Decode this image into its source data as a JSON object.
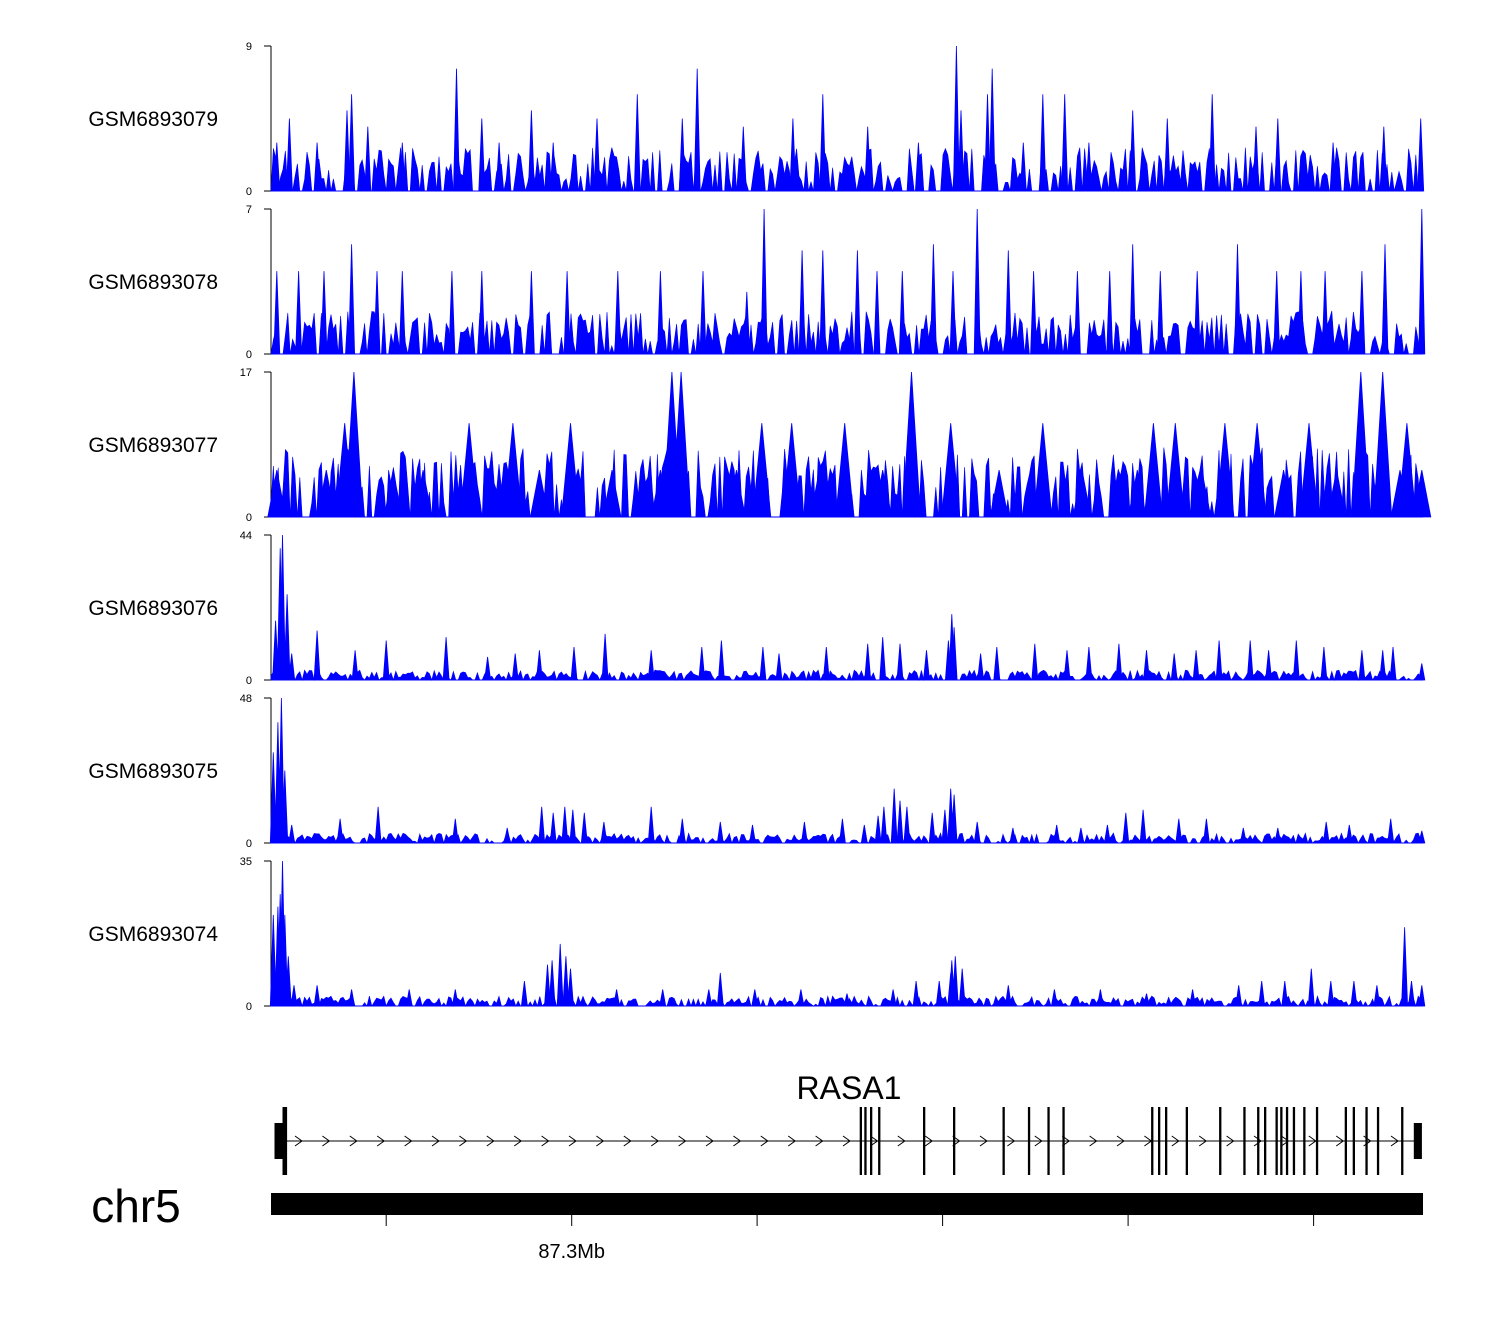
{
  "chart_data": {
    "type": "area",
    "title": "",
    "region": {
      "chromosome": "chr5",
      "gene": "RASA1",
      "tick_label": "87.3Mb"
    },
    "colors": {
      "signal": "#0000ff",
      "gene": "#000000"
    },
    "tracks": [
      {
        "name": "GSM6893079",
        "ymin": 0,
        "ymax": 9,
        "ymin_label": "0",
        "ymax_label": "9",
        "peaks": [
          [
            0.005,
            3
          ],
          [
            0.016,
            4.5
          ],
          [
            0.04,
            3
          ],
          [
            0.066,
            5
          ],
          [
            0.07,
            6
          ],
          [
            0.084,
            4
          ],
          [
            0.114,
            3
          ],
          [
            0.161,
            7.6
          ],
          [
            0.183,
            4.5
          ],
          [
            0.198,
            3
          ],
          [
            0.226,
            5
          ],
          [
            0.245,
            3
          ],
          [
            0.283,
            4.5
          ],
          [
            0.318,
            6
          ],
          [
            0.357,
            4.5
          ],
          [
            0.37,
            7.6
          ],
          [
            0.41,
            4
          ],
          [
            0.453,
            4.5
          ],
          [
            0.479,
            6
          ],
          [
            0.518,
            4
          ],
          [
            0.562,
            3
          ],
          [
            0.595,
            9
          ],
          [
            0.599,
            5
          ],
          [
            0.622,
            6
          ],
          [
            0.626,
            7.6
          ],
          [
            0.653,
            3
          ],
          [
            0.67,
            6
          ],
          [
            0.689,
            6
          ],
          [
            0.71,
            3
          ],
          [
            0.748,
            5
          ],
          [
            0.778,
            4.5
          ],
          [
            0.817,
            6
          ],
          [
            0.855,
            4
          ],
          [
            0.874,
            4.5
          ],
          [
            0.922,
            3
          ],
          [
            0.966,
            4
          ],
          [
            0.998,
            4.5
          ]
        ]
      },
      {
        "name": "GSM6893078",
        "ymin": 0,
        "ymax": 7,
        "ymin_label": "0",
        "ymax_label": "7",
        "peaks": [
          [
            0.005,
            4
          ],
          [
            0.024,
            4
          ],
          [
            0.046,
            4
          ],
          [
            0.07,
            5.3
          ],
          [
            0.092,
            4
          ],
          [
            0.114,
            4
          ],
          [
            0.157,
            4
          ],
          [
            0.183,
            4
          ],
          [
            0.226,
            4
          ],
          [
            0.257,
            4
          ],
          [
            0.301,
            4
          ],
          [
            0.338,
            4
          ],
          [
            0.375,
            4
          ],
          [
            0.413,
            3
          ],
          [
            0.428,
            7
          ],
          [
            0.461,
            5
          ],
          [
            0.479,
            5
          ],
          [
            0.509,
            5
          ],
          [
            0.526,
            4
          ],
          [
            0.548,
            4
          ],
          [
            0.575,
            5.3
          ],
          [
            0.592,
            4
          ],
          [
            0.613,
            7
          ],
          [
            0.64,
            5
          ],
          [
            0.662,
            4
          ],
          [
            0.7,
            4
          ],
          [
            0.728,
            4
          ],
          [
            0.748,
            5.3
          ],
          [
            0.772,
            4
          ],
          [
            0.804,
            4
          ],
          [
            0.839,
            5.3
          ],
          [
            0.873,
            4
          ],
          [
            0.894,
            4
          ],
          [
            0.915,
            4
          ],
          [
            0.947,
            4
          ],
          [
            0.967,
            5.3
          ],
          [
            0.999,
            7
          ]
        ]
      },
      {
        "name": "GSM6893077",
        "ymin": 0,
        "ymax": 17,
        "ymin_label": "0",
        "ymax_label": "17",
        "peaks": [
          [
            0.005,
            5.5
          ],
          [
            0.048,
            5.5
          ],
          [
            0.064,
            11
          ],
          [
            0.072,
            17
          ],
          [
            0.106,
            5.5
          ],
          [
            0.132,
            5.5
          ],
          [
            0.172,
            11
          ],
          [
            0.21,
            11
          ],
          [
            0.233,
            5.5
          ],
          [
            0.26,
            11
          ],
          [
            0.296,
            5.5
          ],
          [
            0.338,
            5.5
          ],
          [
            0.348,
            17
          ],
          [
            0.356,
            17
          ],
          [
            0.404,
            5.5
          ],
          [
            0.426,
            11
          ],
          [
            0.452,
            11
          ],
          [
            0.476,
            5.5
          ],
          [
            0.498,
            11
          ],
          [
            0.531,
            5.5
          ],
          [
            0.556,
            17
          ],
          [
            0.59,
            11
          ],
          [
            0.632,
            5.5
          ],
          [
            0.67,
            11
          ],
          [
            0.704,
            5.5
          ],
          [
            0.752,
            5.5
          ],
          [
            0.766,
            11
          ],
          [
            0.785,
            11
          ],
          [
            0.808,
            5.5
          ],
          [
            0.828,
            11
          ],
          [
            0.856,
            11
          ],
          [
            0.879,
            5.5
          ],
          [
            0.901,
            11
          ],
          [
            0.925,
            5.5
          ],
          [
            0.946,
            17
          ],
          [
            0.965,
            17
          ],
          [
            0.98,
            5.5
          ],
          [
            0.986,
            11
          ],
          [
            0.999,
            5.5
          ]
        ]
      },
      {
        "name": "GSM6893076",
        "ymin": 0,
        "ymax": 44,
        "ymin_label": "0",
        "ymax_label": "44",
        "peaks": [
          [
            0.004,
            18
          ],
          [
            0.008,
            40
          ],
          [
            0.01,
            44
          ],
          [
            0.014,
            26
          ],
          [
            0.018,
            8
          ],
          [
            0.04,
            15
          ],
          [
            0.073,
            9
          ],
          [
            0.1,
            12
          ],
          [
            0.152,
            13
          ],
          [
            0.188,
            7
          ],
          [
            0.212,
            8
          ],
          [
            0.233,
            9
          ],
          [
            0.263,
            10
          ],
          [
            0.29,
            14
          ],
          [
            0.33,
            9
          ],
          [
            0.374,
            10
          ],
          [
            0.391,
            12
          ],
          [
            0.427,
            10
          ],
          [
            0.441,
            8
          ],
          [
            0.482,
            10
          ],
          [
            0.518,
            11
          ],
          [
            0.531,
            13
          ],
          [
            0.546,
            11
          ],
          [
            0.569,
            9
          ],
          [
            0.588,
            12
          ],
          [
            0.591,
            20
          ],
          [
            0.593,
            16
          ],
          [
            0.616,
            8
          ],
          [
            0.63,
            10
          ],
          [
            0.663,
            11
          ],
          [
            0.691,
            9
          ],
          [
            0.71,
            10
          ],
          [
            0.736,
            11
          ],
          [
            0.76,
            9
          ],
          [
            0.784,
            8
          ],
          [
            0.803,
            9
          ],
          [
            0.823,
            12
          ],
          [
            0.85,
            12
          ],
          [
            0.866,
            9
          ],
          [
            0.89,
            12
          ],
          [
            0.914,
            10
          ],
          [
            0.947,
            9
          ],
          [
            0.965,
            9
          ],
          [
            0.974,
            10
          ],
          [
            0.999,
            5
          ]
        ]
      },
      {
        "name": "GSM6893075",
        "ymin": 0,
        "ymax": 48,
        "ymin_label": "0",
        "ymax_label": "48",
        "peaks": [
          [
            0.002,
            30
          ],
          [
            0.006,
            40
          ],
          [
            0.009,
            48
          ],
          [
            0.012,
            24
          ],
          [
            0.018,
            6
          ],
          [
            0.06,
            8
          ],
          [
            0.093,
            12
          ],
          [
            0.16,
            8
          ],
          [
            0.205,
            5
          ],
          [
            0.235,
            12
          ],
          [
            0.245,
            10
          ],
          [
            0.255,
            12
          ],
          [
            0.262,
            11
          ],
          [
            0.272,
            10
          ],
          [
            0.289,
            7
          ],
          [
            0.33,
            12
          ],
          [
            0.357,
            8
          ],
          [
            0.39,
            7
          ],
          [
            0.418,
            6
          ],
          [
            0.463,
            7
          ],
          [
            0.496,
            8
          ],
          [
            0.515,
            6
          ],
          [
            0.527,
            9
          ],
          [
            0.532,
            12
          ],
          [
            0.541,
            18
          ],
          [
            0.546,
            14
          ],
          [
            0.552,
            12
          ],
          [
            0.574,
            10
          ],
          [
            0.585,
            11
          ],
          [
            0.59,
            18
          ],
          [
            0.593,
            16
          ],
          [
            0.613,
            7
          ],
          [
            0.644,
            5
          ],
          [
            0.682,
            6
          ],
          [
            0.703,
            5
          ],
          [
            0.726,
            6
          ],
          [
            0.742,
            10
          ],
          [
            0.757,
            11
          ],
          [
            0.788,
            8
          ],
          [
            0.812,
            8
          ],
          [
            0.844,
            5
          ],
          [
            0.874,
            5
          ],
          [
            0.916,
            7
          ],
          [
            0.936,
            6
          ],
          [
            0.972,
            8
          ],
          [
            0.999,
            4
          ]
        ]
      },
      {
        "name": "GSM6893074",
        "ymin": 0,
        "ymax": 35,
        "ymin_label": "0",
        "ymax_label": "35",
        "peaks": [
          [
            0.002,
            22
          ],
          [
            0.006,
            24
          ],
          [
            0.008,
            27
          ],
          [
            0.01,
            35
          ],
          [
            0.012,
            22
          ],
          [
            0.015,
            12
          ],
          [
            0.02,
            5
          ],
          [
            0.04,
            5
          ],
          [
            0.07,
            4
          ],
          [
            0.12,
            4
          ],
          [
            0.16,
            4
          ],
          [
            0.22,
            6
          ],
          [
            0.24,
            10
          ],
          [
            0.244,
            11
          ],
          [
            0.251,
            15
          ],
          [
            0.256,
            12
          ],
          [
            0.26,
            9
          ],
          [
            0.3,
            4
          ],
          [
            0.34,
            4
          ],
          [
            0.38,
            4
          ],
          [
            0.39,
            8
          ],
          [
            0.42,
            4
          ],
          [
            0.46,
            4
          ],
          [
            0.5,
            3
          ],
          [
            0.54,
            4
          ],
          [
            0.56,
            6
          ],
          [
            0.58,
            6
          ],
          [
            0.59,
            8
          ],
          [
            0.591,
            11
          ],
          [
            0.594,
            12
          ],
          [
            0.6,
            9
          ],
          [
            0.64,
            5
          ],
          [
            0.68,
            4
          ],
          [
            0.72,
            4
          ],
          [
            0.76,
            3
          ],
          [
            0.8,
            4
          ],
          [
            0.84,
            5
          ],
          [
            0.86,
            6
          ],
          [
            0.88,
            6
          ],
          [
            0.903,
            9
          ],
          [
            0.92,
            6
          ],
          [
            0.94,
            6
          ],
          [
            0.96,
            5
          ],
          [
            0.984,
            19
          ],
          [
            0.99,
            6
          ],
          [
            0.999,
            5
          ]
        ]
      }
    ],
    "gene_model": {
      "name": "RASA1",
      "strand": "+",
      "exons": [
        [
          0.003,
          0.012
        ],
        [
          0.01,
          0.014
        ],
        [
          0.511,
          0.513
        ],
        [
          0.515,
          0.517
        ],
        [
          0.52,
          0.522
        ],
        [
          0.527,
          0.529
        ],
        [
          0.566,
          0.568
        ],
        [
          0.592,
          0.594
        ],
        [
          0.635,
          0.637
        ],
        [
          0.657,
          0.659
        ],
        [
          0.674,
          0.676
        ],
        [
          0.687,
          0.689
        ],
        [
          0.764,
          0.766
        ],
        [
          0.77,
          0.772
        ],
        [
          0.776,
          0.778
        ],
        [
          0.794,
          0.796
        ],
        [
          0.823,
          0.825
        ],
        [
          0.844,
          0.846
        ],
        [
          0.856,
          0.858
        ],
        [
          0.862,
          0.864
        ],
        [
          0.872,
          0.874
        ],
        [
          0.876,
          0.878
        ],
        [
          0.881,
          0.883
        ],
        [
          0.887,
          0.889
        ],
        [
          0.896,
          0.898
        ],
        [
          0.907,
          0.909
        ],
        [
          0.932,
          0.934
        ],
        [
          0.939,
          0.941
        ],
        [
          0.95,
          0.952
        ],
        [
          0.96,
          0.962
        ],
        [
          0.981,
          0.983
        ],
        [
          0.992,
          0.999
        ]
      ]
    },
    "axis": {
      "label": "87.3Mb",
      "label_tick_index": 1,
      "tick_fractions": [
        0.1,
        0.261,
        0.422,
        0.583,
        0.744,
        0.905
      ]
    }
  }
}
